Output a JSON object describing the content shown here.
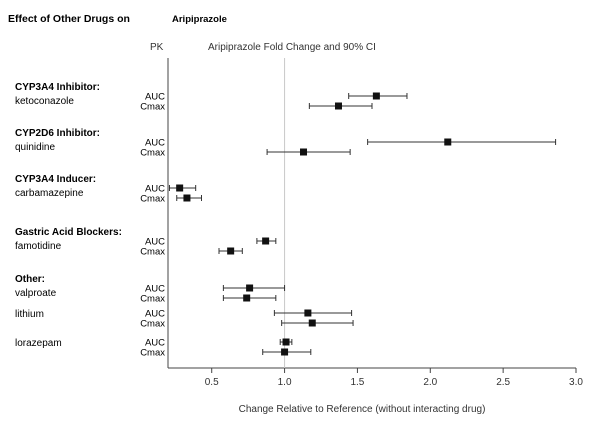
{
  "chart_data": {
    "type": "forest",
    "title_main": "Effect of Other Drugs on",
    "title_drug": "Aripiprazole",
    "pk_header": "PK",
    "ci_header": "Aripiprazole Fold Change and 90% CI",
    "xlabel": "Change Relative to Reference (without interacting drug)",
    "xlim": [
      0.2,
      3.0
    ],
    "xticks": [
      "0.5",
      "1.0",
      "1.5",
      "2.0",
      "2.5",
      "3.0"
    ],
    "reference_line": 1.0,
    "groups": [
      {
        "label": "CYP3A4 Inhibitor:",
        "drug": "ketoconazole",
        "rows": [
          {
            "pk": "AUC",
            "value": 1.63,
            "lo": 1.44,
            "hi": 1.84
          },
          {
            "pk": "Cmax",
            "value": 1.37,
            "lo": 1.17,
            "hi": 1.6
          }
        ]
      },
      {
        "label": "CYP2D6 Inhibitor:",
        "drug": "quinidine",
        "rows": [
          {
            "pk": "AUC",
            "value": 2.12,
            "lo": 1.57,
            "hi": 2.86
          },
          {
            "pk": "Cmax",
            "value": 1.13,
            "lo": 0.88,
            "hi": 1.45
          }
        ]
      },
      {
        "label": "CYP3A4 Inducer:",
        "drug": "carbamazepine",
        "rows": [
          {
            "pk": "AUC",
            "value": 0.28,
            "lo": 0.21,
            "hi": 0.39
          },
          {
            "pk": "Cmax",
            "value": 0.33,
            "lo": 0.26,
            "hi": 0.43
          }
        ]
      },
      {
        "label": "Gastric Acid Blockers:",
        "drug": "famotidine",
        "rows": [
          {
            "pk": "AUC",
            "value": 0.87,
            "lo": 0.81,
            "hi": 0.94
          },
          {
            "pk": "Cmax",
            "value": 0.63,
            "lo": 0.55,
            "hi": 0.71
          }
        ]
      },
      {
        "label": "Other:",
        "drug": "valproate",
        "rows": [
          {
            "pk": "AUC",
            "value": 0.76,
            "lo": 0.58,
            "hi": 1.0
          },
          {
            "pk": "Cmax",
            "value": 0.74,
            "lo": 0.58,
            "hi": 0.94
          }
        ]
      },
      {
        "label": "",
        "drug": "lithium",
        "rows": [
          {
            "pk": "AUC",
            "value": 1.16,
            "lo": 0.93,
            "hi": 1.46
          },
          {
            "pk": "Cmax",
            "value": 1.19,
            "lo": 0.98,
            "hi": 1.47
          }
        ]
      },
      {
        "label": "",
        "drug": "lorazepam",
        "rows": [
          {
            "pk": "AUC",
            "value": 1.01,
            "lo": 0.97,
            "hi": 1.05
          },
          {
            "pk": "Cmax",
            "value": 1.0,
            "lo": 0.85,
            "hi": 1.18
          }
        ]
      }
    ]
  }
}
